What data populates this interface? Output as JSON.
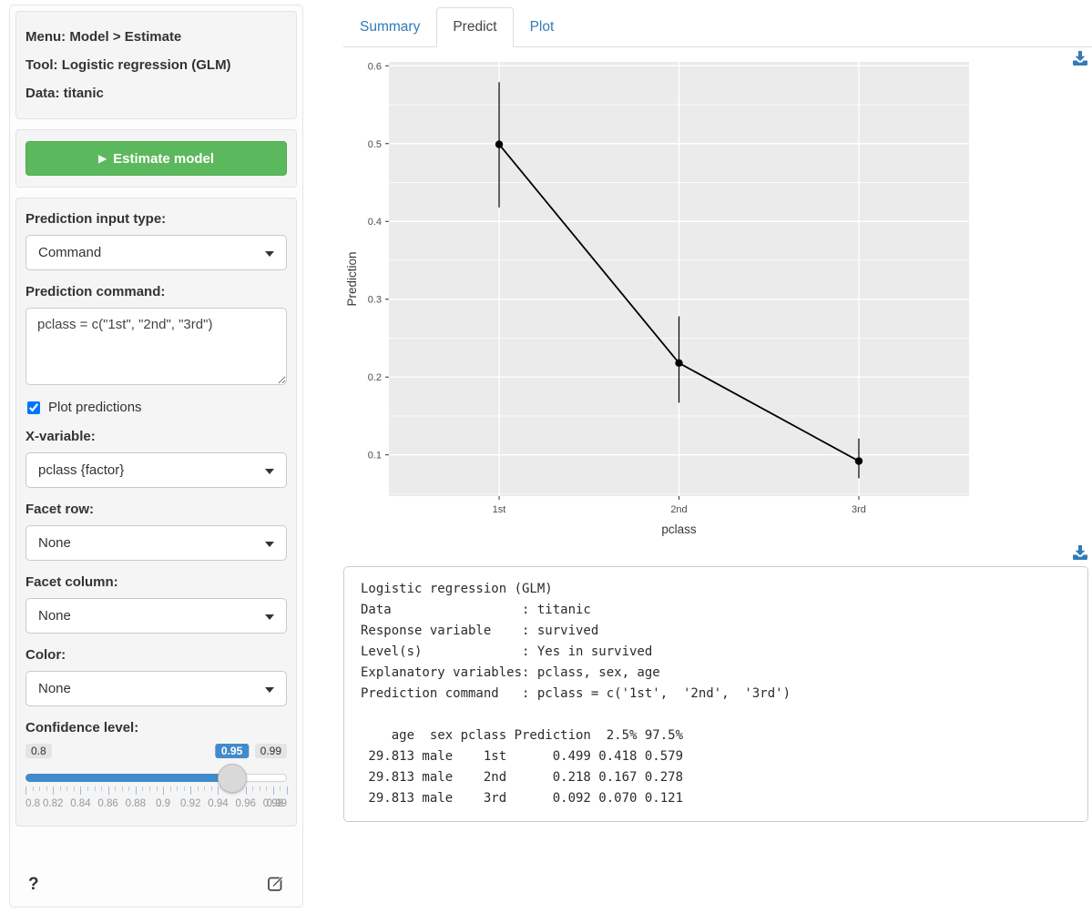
{
  "sidebar": {
    "info": {
      "menu": "Menu: Model > Estimate",
      "tool": "Tool: Logistic regression (GLM)",
      "data": "Data: titanic"
    },
    "estimate_button_label": "Estimate model",
    "groups": {
      "input_type": {
        "label": "Prediction input type:",
        "value": "Command"
      },
      "command": {
        "label": "Prediction command:",
        "value": "pclass = c(\"1st\", \"2nd\", \"3rd\")"
      },
      "plot_predictions": {
        "label": "Plot predictions",
        "checked": "checked"
      },
      "x_variable": {
        "label": "X-variable:",
        "value": "pclass {factor}"
      },
      "facet_row": {
        "label": "Facet row:",
        "value": "None"
      },
      "facet_column": {
        "label": "Facet column:",
        "value": "None"
      },
      "color": {
        "label": "Color:",
        "value": "None"
      }
    },
    "confidence": {
      "label": "Confidence level:",
      "min": 0.8,
      "max": 0.99,
      "value": 0.95,
      "min_label": "0.8",
      "value_label": "0.95",
      "max_label": "0.99",
      "grid_labels": [
        "0.8",
        "0.82",
        "0.84",
        "0.86",
        "0.88",
        "0.9",
        "0.92",
        "0.94",
        "0.96",
        "0.98",
        "0.99"
      ]
    },
    "help_label": "?"
  },
  "tabs": [
    {
      "label": "Summary"
    },
    {
      "label": "Predict"
    },
    {
      "label": "Plot"
    }
  ],
  "chart_data": {
    "type": "line",
    "x": [
      "1st",
      "2nd",
      "3rd"
    ],
    "xlabel": "pclass",
    "ylabel": "Prediction",
    "ylim": [
      0.047,
      0.605
    ],
    "yticks": [
      0.1,
      0.2,
      0.3,
      0.4,
      0.5,
      0.6
    ],
    "grid": "on",
    "legend": "none",
    "series": [
      {
        "name": "Prediction",
        "values": [
          0.499,
          0.218,
          0.092
        ],
        "ci_low": [
          0.418,
          0.167,
          0.07
        ],
        "ci_high": [
          0.579,
          0.278,
          0.121
        ]
      }
    ]
  },
  "output": {
    "lines": [
      "Logistic regression (GLM)",
      "Data                 : titanic",
      "Response variable    : survived",
      "Level(s)             : Yes in survived",
      "Explanatory variables: pclass, sex, age",
      "Prediction command   : pclass = c('1st',  '2nd',  '3rd')",
      "",
      "    age  sex pclass Prediction  2.5% 97.5%",
      " 29.813 male    1st      0.499 0.418 0.579",
      " 29.813 male    2nd      0.218 0.167 0.278",
      " 29.813 male    3rd      0.092 0.070 0.121"
    ]
  },
  "colors": {
    "accent_green": "#5cb85c",
    "link_blue": "#337ab7",
    "slider_blue": "#428bca",
    "panel_gray": "#ebebeb",
    "icon_blue": "#337ab7"
  }
}
